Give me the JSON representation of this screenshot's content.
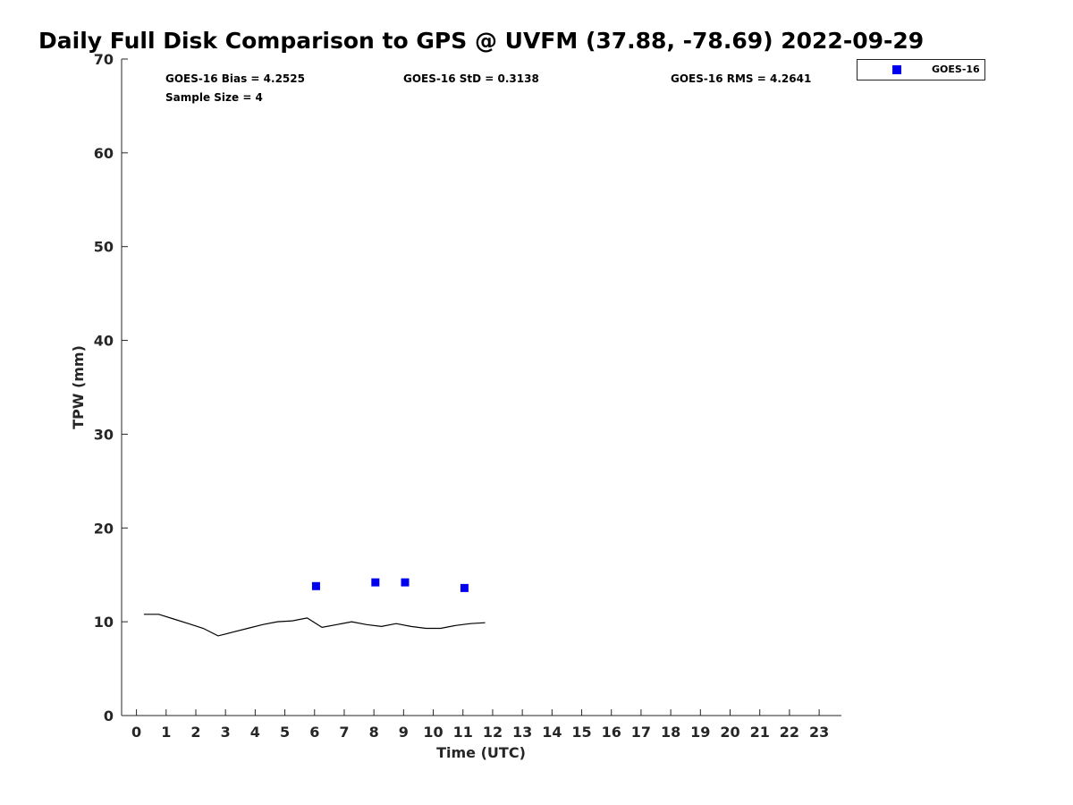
{
  "chart_data": {
    "type": "scatter",
    "title": "Daily Full Disk Comparison to GPS @ UVFM (37.88, -78.69) 2022-09-29",
    "xlabel": "Time (UTC)",
    "ylabel": "TPW (mm)",
    "xlim": [
      -0.5,
      23.75
    ],
    "ylim": [
      0,
      70
    ],
    "x_ticks": [
      "0",
      "1",
      "2",
      "3",
      "4",
      "5",
      "6",
      "7",
      "8",
      "9",
      "10",
      "11",
      "12",
      "13",
      "14",
      "15",
      "16",
      "17",
      "18",
      "19",
      "20",
      "21",
      "22",
      "23"
    ],
    "y_ticks": [
      "0",
      "10",
      "20",
      "30",
      "40",
      "50",
      "60",
      "70"
    ],
    "grid": false,
    "legend_position": "top-right",
    "stats": {
      "bias": "GOES-16 Bias = 4.2525",
      "std": "GOES-16 StD = 0.3138",
      "rms": "GOES-16 RMS = 4.2641",
      "sample": "Sample Size = 4"
    },
    "series": [
      {
        "name": "GOES-16",
        "kind": "scatter",
        "marker": "square",
        "color": "#0000ee",
        "x": [
          6.05,
          8.05,
          9.05,
          11.05
        ],
        "y": [
          13.8,
          14.2,
          14.2,
          13.6
        ]
      },
      {
        "kind": "line",
        "color": "#000000",
        "x": [
          0.25,
          0.75,
          1.25,
          1.75,
          2.25,
          2.75,
          3.25,
          3.75,
          4.25,
          4.75,
          5.25,
          5.75,
          6.25,
          6.75,
          7.25,
          7.75,
          8.25,
          8.75,
          9.25,
          9.75,
          10.25,
          10.75,
          11.25,
          11.75
        ],
        "y": [
          10.8,
          10.8,
          10.3,
          9.8,
          9.3,
          8.5,
          8.9,
          9.3,
          9.7,
          10.0,
          10.1,
          10.4,
          9.4,
          9.7,
          10.0,
          9.7,
          9.5,
          9.8,
          9.5,
          9.3,
          9.3,
          9.6,
          9.8,
          9.9
        ]
      }
    ]
  }
}
